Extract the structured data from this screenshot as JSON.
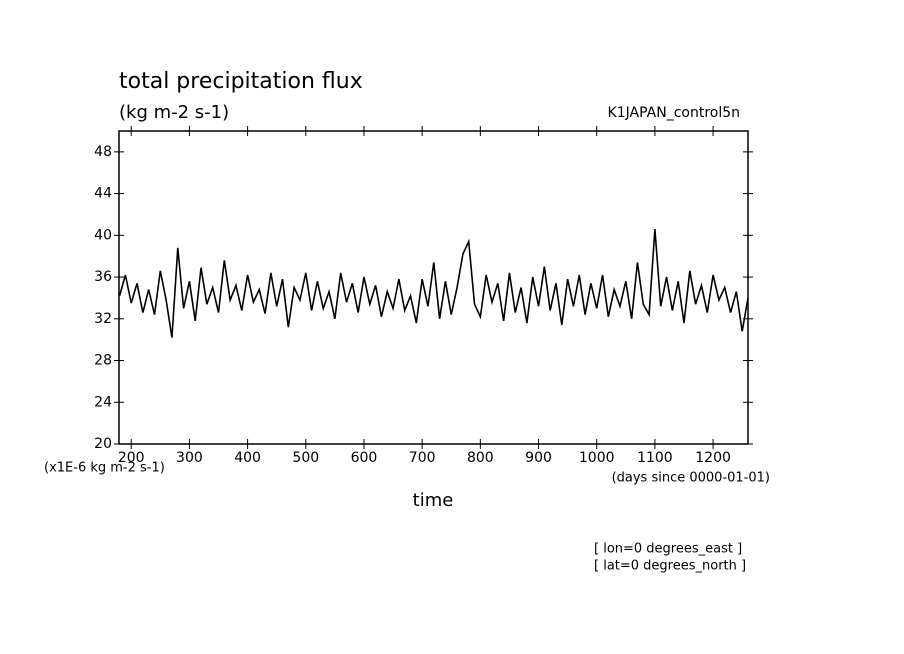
{
  "chart_data": {
    "type": "line",
    "title": "total precipitation flux",
    "subtitle": "(kg m-2 s-1)",
    "dataset": "K1JAPAN_control5n",
    "x_label": "time",
    "y_units": "(x1E-6 kg m-2 s-1)",
    "x_units": "(days since 0000-01-01)",
    "annotations": [
      "[ lon=0 degrees_east ]",
      "[ lat=0 degrees_north ]"
    ],
    "x": [
      180,
      190,
      200,
      210,
      220,
      230,
      240,
      250,
      260,
      270,
      280,
      290,
      300,
      310,
      320,
      330,
      340,
      350,
      360,
      370,
      380,
      390,
      400,
      410,
      420,
      430,
      440,
      450,
      460,
      470,
      480,
      490,
      500,
      510,
      520,
      530,
      540,
      550,
      560,
      570,
      580,
      590,
      600,
      610,
      620,
      630,
      640,
      650,
      660,
      670,
      680,
      690,
      700,
      710,
      720,
      730,
      740,
      750,
      760,
      770,
      780,
      790,
      800,
      810,
      820,
      830,
      840,
      850,
      860,
      870,
      880,
      890,
      900,
      910,
      920,
      930,
      940,
      950,
      960,
      970,
      980,
      990,
      1000,
      1010,
      1020,
      1030,
      1040,
      1050,
      1060,
      1070,
      1080,
      1090,
      1100,
      1110,
      1120,
      1130,
      1140,
      1150,
      1160,
      1170,
      1180,
      1190,
      1200,
      1210,
      1220,
      1230,
      1240,
      1250,
      1260
    ],
    "series": [
      {
        "color": "#000000",
        "values": [
          34.2,
          36.2,
          33.5,
          35.4,
          32.6,
          34.8,
          32.4,
          36.6,
          33.8,
          30.2,
          38.8,
          33.0,
          35.6,
          31.8,
          36.9,
          33.4,
          35.0,
          32.6,
          37.6,
          33.8,
          35.2,
          32.8,
          36.2,
          33.6,
          34.8,
          32.5,
          36.4,
          33.2,
          35.8,
          31.2,
          35.0,
          33.8,
          36.4,
          32.8,
          35.6,
          33.0,
          34.6,
          32.0,
          36.4,
          33.6,
          35.4,
          32.6,
          36.0,
          33.4,
          35.2,
          32.2,
          34.6,
          33.0,
          35.8,
          32.8,
          34.2,
          31.6,
          35.8,
          33.2,
          37.4,
          32.0,
          35.6,
          32.4,
          35.0,
          38.2,
          39.4,
          33.4,
          32.2,
          36.2,
          33.6,
          35.4,
          31.8,
          36.4,
          32.6,
          35.0,
          31.6,
          36.0,
          33.2,
          37.0,
          32.8,
          35.4,
          31.4,
          35.8,
          33.2,
          36.2,
          32.4,
          35.4,
          33.0,
          36.2,
          32.2,
          34.8,
          33.2,
          35.6,
          32.0,
          37.4,
          33.4,
          32.4,
          40.6,
          33.2,
          36.0,
          32.8,
          35.6,
          31.6,
          36.6,
          33.4,
          35.2,
          32.6,
          36.2,
          33.8,
          35.0,
          32.6,
          34.6,
          30.8,
          34.0
        ]
      }
    ],
    "xlim": [
      179,
      1260
    ],
    "xticks": [
      200,
      300,
      400,
      500,
      600,
      700,
      800,
      900,
      1000,
      1100,
      1200
    ],
    "ylim": [
      20,
      50
    ],
    "yticks": [
      20,
      24,
      28,
      32,
      36,
      40,
      44,
      48
    ]
  }
}
